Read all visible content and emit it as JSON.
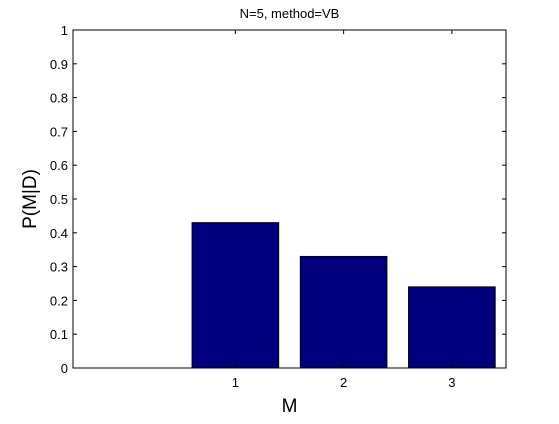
{
  "chart_data": {
    "type": "bar",
    "title": "N=5, method=VB",
    "xlabel": "M",
    "ylabel": "P(M|D)",
    "x": [
      1,
      2,
      3
    ],
    "categories": [
      "1",
      "2",
      "3"
    ],
    "values": [
      0.43,
      0.33,
      0.24
    ],
    "xlim": [
      -0.5,
      3.5
    ],
    "ylim": [
      0,
      1
    ],
    "y_ticks": [
      "0",
      "0.1",
      "0.2",
      "0.3",
      "0.4",
      "0.5",
      "0.6",
      "0.7",
      "0.8",
      "0.9",
      "1"
    ],
    "grid": false,
    "legend": "none",
    "bar_color": "#00007f",
    "bar_edge_color": "#000000"
  }
}
